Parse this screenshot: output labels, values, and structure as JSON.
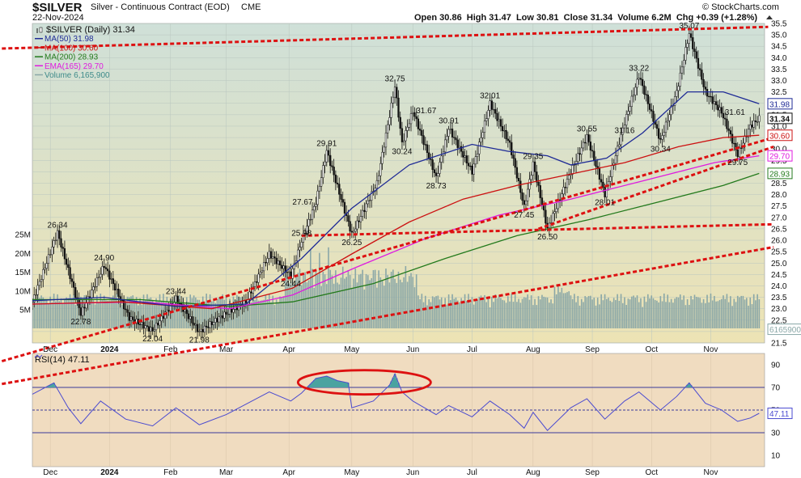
{
  "header": {
    "symbol": "$SILVER",
    "name": "Silver - Continuous Contract (EOD)",
    "exchange": "CME",
    "date": "22-Nov-2024",
    "ohlc": "Open 30.86  High 31.47  Low 30.81  Close 31.34  Volume 6.2M  Chg +0.39 (+1.28%)",
    "copyright": "© StockCharts.com"
  },
  "colors": {
    "price_bg_top": "#cfe0d8",
    "price_bg_bottom": "#ede3b4",
    "rsi_bg": "#f0dcc0",
    "candle": "#111111",
    "ma50": "#1f2b96",
    "ma100": "#cc1111",
    "ma200": "#237a1c",
    "ema165": "#e01adf",
    "volume": "#8aa7a7",
    "trend": "#dd1111",
    "rsi_line": "#4a4ad0",
    "rsi_fill": "#4aa3a0"
  },
  "chart_data": [
    {
      "type": "candlestick",
      "title": "$SILVER (Daily) 31.34",
      "legend": [
        {
          "label": "$SILVER (Daily) 31.34",
          "color": "#111111"
        },
        {
          "label": "MA(50) 31.98",
          "color": "#1f2b96"
        },
        {
          "label": "MA(100) 30.60",
          "color": "#cc1111"
        },
        {
          "label": "MA(200) 28.93",
          "color": "#237a1c"
        },
        {
          "label": "EMA(165) 29.70",
          "color": "#e01adf"
        },
        {
          "label": "Volume 6,165,900",
          "color": "#8aa7a7"
        }
      ],
      "legend_position": "top-left",
      "x_labels": [
        "Dec",
        "2024",
        "Feb",
        "Mar",
        "Apr",
        "May",
        "Jun",
        "Jul",
        "Aug",
        "Sep",
        "Oct",
        "Nov"
      ],
      "y_ticks": [
        "21.5",
        "22.0",
        "22.5",
        "23.0",
        "23.5",
        "24.0",
        "24.5",
        "25.0",
        "25.5",
        "26.0",
        "26.5",
        "27.0",
        "27.5",
        "28.0",
        "28.5",
        "29.0",
        "29.5",
        "30.0",
        "30.5",
        "31.0",
        "31.5",
        "32.0",
        "32.5",
        "33.0",
        "33.5",
        "34.0",
        "34.5",
        "35.0",
        "35.5"
      ],
      "ylim": [
        21.5,
        35.5
      ],
      "volume_ticks": [
        "5M",
        "10M",
        "15M",
        "20M",
        "25M"
      ],
      "price_path": [
        {
          "label": "A",
          "x": 0,
          "v": 23.3
        },
        {
          "label": "B",
          "x": 14,
          "v": 26.34
        },
        {
          "label": "C",
          "x": 27,
          "v": 22.78
        },
        {
          "label": "D",
          "x": 40,
          "v": 24.9
        },
        {
          "label": "E",
          "x": 54,
          "v": 22.6
        },
        {
          "label": "F",
          "x": 67,
          "v": 22.04
        },
        {
          "label": "G",
          "x": 80,
          "v": 23.44
        },
        {
          "label": "H",
          "x": 93,
          "v": 21.98
        },
        {
          "label": "I",
          "x": 106,
          "v": 22.7
        },
        {
          "label": "J",
          "x": 119,
          "v": 23.3
        },
        {
          "label": "K",
          "x": 132,
          "v": 25.4
        },
        {
          "label": "L",
          "x": 144,
          "v": 24.44
        },
        {
          "label": "M",
          "x": 150,
          "v": 25.98
        },
        {
          "label": "N",
          "x": 158,
          "v": 27.67
        },
        {
          "label": "O",
          "x": 164,
          "v": 29.91
        },
        {
          "label": "P",
          "x": 178,
          "v": 26.25
        },
        {
          "label": "Q",
          "x": 192,
          "v": 28.5
        },
        {
          "label": "R",
          "x": 202,
          "v": 32.75
        },
        {
          "label": "S",
          "x": 206,
          "v": 30.24
        },
        {
          "label": "T",
          "x": 212,
          "v": 31.67
        },
        {
          "label": "U",
          "x": 225,
          "v": 28.73
        },
        {
          "label": "V",
          "x": 232,
          "v": 30.91
        },
        {
          "label": "W",
          "x": 245,
          "v": 29.0
        },
        {
          "label": "X",
          "x": 255,
          "v": 32.01
        },
        {
          "label": "Y",
          "x": 266,
          "v": 30.2
        },
        {
          "label": "Z",
          "x": 274,
          "v": 27.45
        },
        {
          "label": "AA",
          "x": 279,
          "v": 29.35
        },
        {
          "label": "AB",
          "x": 287,
          "v": 26.5
        },
        {
          "label": "AC",
          "x": 300,
          "v": 29.0
        },
        {
          "label": "AD",
          "x": 309,
          "v": 30.55
        },
        {
          "label": "AE",
          "x": 319,
          "v": 28.01
        },
        {
          "label": "AF",
          "x": 330,
          "v": 31.16
        },
        {
          "label": "AG",
          "x": 338,
          "v": 33.22
        },
        {
          "label": "AH",
          "x": 350,
          "v": 30.34
        },
        {
          "label": "AI",
          "x": 359,
          "v": 32.5
        },
        {
          "label": "AJ",
          "x": 366,
          "v": 35.07
        },
        {
          "label": "AK",
          "x": 375,
          "v": 32.5
        },
        {
          "label": "AL",
          "x": 384,
          "v": 31.61
        },
        {
          "label": "AM",
          "x": 393,
          "v": 29.75
        },
        {
          "label": "AN",
          "x": 400,
          "v": 31.0
        },
        {
          "label": "AO",
          "x": 405,
          "v": 31.34
        }
      ],
      "price_labels": [
        {
          "text": "26.34",
          "x": 14,
          "v": 26.34,
          "pos": "above"
        },
        {
          "text": "22.78",
          "x": 27,
          "v": 22.78,
          "pos": "below"
        },
        {
          "text": "24.90",
          "x": 40,
          "v": 24.9,
          "pos": "above"
        },
        {
          "text": "22.04",
          "x": 67,
          "v": 22.04,
          "pos": "below"
        },
        {
          "text": "23.44",
          "x": 80,
          "v": 23.44,
          "pos": "above"
        },
        {
          "text": "21.98",
          "x": 93,
          "v": 21.98,
          "pos": "below"
        },
        {
          "text": "24.44",
          "x": 144,
          "v": 24.44,
          "pos": "below"
        },
        {
          "text": "25.98",
          "x": 150,
          "v": 25.98,
          "pos": "above"
        },
        {
          "text": "27.67",
          "x": 158,
          "v": 27.67,
          "pos": "left"
        },
        {
          "text": "29.91",
          "x": 164,
          "v": 29.91,
          "pos": "above"
        },
        {
          "text": "26.25",
          "x": 178,
          "v": 26.25,
          "pos": "below"
        },
        {
          "text": "32.75",
          "x": 202,
          "v": 32.75,
          "pos": "above"
        },
        {
          "text": "30.24",
          "x": 206,
          "v": 30.24,
          "pos": "below"
        },
        {
          "text": "31.67",
          "x": 212,
          "v": 31.67,
          "pos": "right"
        },
        {
          "text": "30.91",
          "x": 232,
          "v": 30.91,
          "pos": "above"
        },
        {
          "text": "28.73",
          "x": 225,
          "v": 28.73,
          "pos": "below"
        },
        {
          "text": "32.01",
          "x": 255,
          "v": 32.01,
          "pos": "above"
        },
        {
          "text": "29.35",
          "x": 279,
          "v": 29.35,
          "pos": "above"
        },
        {
          "text": "27.45",
          "x": 274,
          "v": 27.45,
          "pos": "below"
        },
        {
          "text": "26.50",
          "x": 287,
          "v": 26.5,
          "pos": "below"
        },
        {
          "text": "30.55",
          "x": 309,
          "v": 30.55,
          "pos": "above"
        },
        {
          "text": "28.01",
          "x": 319,
          "v": 28.01,
          "pos": "below"
        },
        {
          "text": "31.16",
          "x": 330,
          "v": 31.16,
          "pos": "below"
        },
        {
          "text": "33.22",
          "x": 338,
          "v": 33.22,
          "pos": "above"
        },
        {
          "text": "30.34",
          "x": 350,
          "v": 30.34,
          "pos": "below"
        },
        {
          "text": "35.07",
          "x": 366,
          "v": 35.07,
          "pos": "above"
        },
        {
          "text": "31.61",
          "x": 384,
          "v": 31.61,
          "pos": "right"
        },
        {
          "text": "29.75",
          "x": 393,
          "v": 29.75,
          "pos": "below"
        }
      ],
      "ma50": [
        {
          "x": 0,
          "v": 23.35
        },
        {
          "x": 40,
          "v": 23.5
        },
        {
          "x": 80,
          "v": 23.1
        },
        {
          "x": 119,
          "v": 23.2
        },
        {
          "x": 150,
          "v": 25.2
        },
        {
          "x": 178,
          "v": 27.4
        },
        {
          "x": 210,
          "v": 29.3
        },
        {
          "x": 245,
          "v": 30.2
        },
        {
          "x": 265,
          "v": 29.9
        },
        {
          "x": 287,
          "v": 29.7
        },
        {
          "x": 300,
          "v": 29.3
        },
        {
          "x": 320,
          "v": 29.6
        },
        {
          "x": 340,
          "v": 30.7
        },
        {
          "x": 365,
          "v": 32.5
        },
        {
          "x": 385,
          "v": 32.5
        },
        {
          "x": 405,
          "v": 31.98
        }
      ],
      "ma100": [
        {
          "x": 0,
          "v": 23.2
        },
        {
          "x": 50,
          "v": 23.3
        },
        {
          "x": 100,
          "v": 23.0
        },
        {
          "x": 145,
          "v": 23.9
        },
        {
          "x": 178,
          "v": 25.4
        },
        {
          "x": 210,
          "v": 26.8
        },
        {
          "x": 240,
          "v": 27.8
        },
        {
          "x": 270,
          "v": 28.4
        },
        {
          "x": 300,
          "v": 28.9
        },
        {
          "x": 330,
          "v": 29.4
        },
        {
          "x": 360,
          "v": 30.1
        },
        {
          "x": 385,
          "v": 30.5
        },
        {
          "x": 405,
          "v": 30.6
        }
      ],
      "ma200": [
        {
          "x": 0,
          "v": 23.4
        },
        {
          "x": 60,
          "v": 23.4
        },
        {
          "x": 110,
          "v": 23.1
        },
        {
          "x": 145,
          "v": 23.3
        },
        {
          "x": 190,
          "v": 24.1
        },
        {
          "x": 230,
          "v": 25.2
        },
        {
          "x": 270,
          "v": 26.2
        },
        {
          "x": 310,
          "v": 26.9
        },
        {
          "x": 350,
          "v": 27.7
        },
        {
          "x": 385,
          "v": 28.4
        },
        {
          "x": 405,
          "v": 28.93
        }
      ],
      "ema165": [
        {
          "x": 0,
          "v": 23.2
        },
        {
          "x": 60,
          "v": 23.3
        },
        {
          "x": 110,
          "v": 23.0
        },
        {
          "x": 145,
          "v": 23.6
        },
        {
          "x": 180,
          "v": 24.8
        },
        {
          "x": 220,
          "v": 26.1
        },
        {
          "x": 260,
          "v": 27.1
        },
        {
          "x": 300,
          "v": 27.8
        },
        {
          "x": 340,
          "v": 28.6
        },
        {
          "x": 380,
          "v": 29.4
        },
        {
          "x": 405,
          "v": 29.7
        }
      ],
      "trendlines": [
        {
          "from": {
            "x": -17,
            "v": 34.4
          },
          "to": {
            "x": 410,
            "v": 35.35
          }
        },
        {
          "from": {
            "x": -17,
            "v": 20.7
          },
          "to": {
            "x": 413,
            "v": 30.5
          }
        },
        {
          "from": {
            "x": -17,
            "v": 19.7
          },
          "to": {
            "x": 413,
            "v": 25.7
          }
        },
        {
          "from": {
            "x": 150,
            "v": 26.2
          },
          "to": {
            "x": 413,
            "v": 26.7
          }
        },
        {
          "from": {
            "x": 282,
            "v": 26.5
          },
          "to": {
            "x": 413,
            "v": 30.1
          }
        }
      ],
      "right_axis_labels": [
        {
          "text": "31.98",
          "v": 31.98,
          "color": "#1f2b96",
          "box": true
        },
        {
          "text": "31.34",
          "v": 31.34,
          "color": "#111111",
          "box": true,
          "bold": true
        },
        {
          "text": "30.60",
          "v": 30.6,
          "color": "#cc1111",
          "box": true
        },
        {
          "text": "29.70",
          "v": 29.7,
          "color": "#e01adf",
          "box": true
        },
        {
          "text": "28.93",
          "v": 28.93,
          "color": "#237a1c",
          "box": true
        },
        {
          "text": "6165900",
          "v": 22.1,
          "color": "#8aa7a7",
          "box": true
        }
      ]
    },
    {
      "type": "line",
      "title": "RSI(14) 47.11",
      "ylim": [
        0,
        100
      ],
      "y_ticks": [
        "10",
        "30",
        "50",
        "70",
        "90"
      ],
      "levels": [
        30,
        50,
        70
      ],
      "last_value": "47.11",
      "rsi_path": [
        {
          "label": "A",
          "x": 0,
          "v": 64
        },
        {
          "label": "B",
          "x": 12,
          "v": 74
        },
        {
          "label": "C",
          "x": 20,
          "v": 52
        },
        {
          "label": "D",
          "x": 27,
          "v": 38
        },
        {
          "label": "E",
          "x": 38,
          "v": 58
        },
        {
          "label": "F",
          "x": 52,
          "v": 42
        },
        {
          "label": "G",
          "x": 67,
          "v": 36
        },
        {
          "label": "H",
          "x": 80,
          "v": 52
        },
        {
          "label": "I",
          "x": 93,
          "v": 37
        },
        {
          "label": "J",
          "x": 108,
          "v": 46
        },
        {
          "label": "K",
          "x": 120,
          "v": 56
        },
        {
          "label": "L",
          "x": 132,
          "v": 66
        },
        {
          "label": "M",
          "x": 144,
          "v": 58
        },
        {
          "label": "N",
          "x": 150,
          "v": 65
        },
        {
          "label": "O",
          "x": 158,
          "v": 78
        },
        {
          "label": "P",
          "x": 164,
          "v": 80
        },
        {
          "label": "Q",
          "x": 170,
          "v": 76
        },
        {
          "label": "R",
          "x": 176,
          "v": 74
        },
        {
          "label": "S",
          "x": 178,
          "v": 52
        },
        {
          "label": "T",
          "x": 190,
          "v": 58
        },
        {
          "label": "U",
          "x": 199,
          "v": 72
        },
        {
          "label": "V",
          "x": 202,
          "v": 82
        },
        {
          "label": "W",
          "x": 206,
          "v": 66
        },
        {
          "label": "X",
          "x": 212,
          "v": 58
        },
        {
          "label": "Y",
          "x": 225,
          "v": 46
        },
        {
          "label": "Z",
          "x": 232,
          "v": 54
        },
        {
          "label": "AA",
          "x": 245,
          "v": 44
        },
        {
          "label": "AB",
          "x": 255,
          "v": 58
        },
        {
          "label": "AC",
          "x": 266,
          "v": 46
        },
        {
          "label": "AD",
          "x": 274,
          "v": 34
        },
        {
          "label": "AE",
          "x": 279,
          "v": 48
        },
        {
          "label": "AF",
          "x": 287,
          "v": 32
        },
        {
          "label": "AG",
          "x": 300,
          "v": 52
        },
        {
          "label": "AH",
          "x": 309,
          "v": 60
        },
        {
          "label": "AI",
          "x": 319,
          "v": 42
        },
        {
          "label": "AJ",
          "x": 330,
          "v": 58
        },
        {
          "label": "AK",
          "x": 338,
          "v": 66
        },
        {
          "label": "AL",
          "x": 350,
          "v": 50
        },
        {
          "label": "AM",
          "x": 359,
          "v": 62
        },
        {
          "label": "AN",
          "x": 366,
          "v": 74
        },
        {
          "label": "AO",
          "x": 375,
          "v": 56
        },
        {
          "label": "AP",
          "x": 384,
          "v": 50
        },
        {
          "label": "AQ",
          "x": 393,
          "v": 40
        },
        {
          "label": "AR",
          "x": 400,
          "v": 43
        },
        {
          "label": "AS",
          "x": 405,
          "v": 47.11
        }
      ],
      "x_labels": [
        "Dec",
        "2024",
        "Feb",
        "Mar",
        "Apr",
        "May",
        "Jun",
        "Jul",
        "Aug",
        "Sep",
        "Oct",
        "Nov"
      ]
    }
  ]
}
